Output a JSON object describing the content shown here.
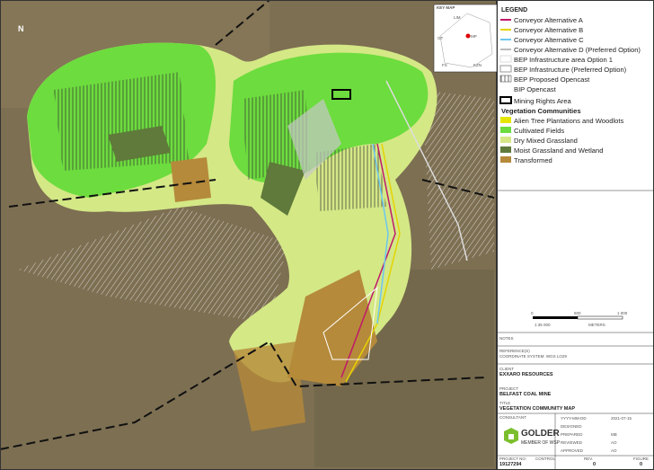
{
  "key_map": {
    "title": "KEY MAP",
    "labels": [
      "LIM",
      "GT",
      "MP",
      "FS",
      "KZN"
    ]
  },
  "legend": {
    "title": "LEGEND",
    "items": [
      "Conveyor Alternative A",
      "Conveyor Alternative B",
      "Conveyor Alternative C",
      "Conveyor Alternative D (Preferred Option)",
      "BEP Infrastructure area Option 1",
      "BEP Infrastructure (Preferred Option)",
      "BEP Proposed Opencast",
      "BIP Opencast",
      "Mining Rights Area"
    ],
    "vegetation_title": "Vegetation Communities",
    "vegetation_items": [
      "Alien Tree Plantations and Woodlots",
      "Cultivated Fields",
      "Dry Mixed Grassland",
      "Moist Grassland and Wetland",
      "Transformed"
    ]
  },
  "scale": {
    "ticks": [
      "0",
      "500",
      "1 000"
    ],
    "ratio": "1:35 000",
    "unit": "METERS"
  },
  "title_block": {
    "notes": "NOTES",
    "references_label": "REFERENCE(S)",
    "references": "COORDINATE SYSTEM: WGS LO29",
    "client_label": "CLIENT",
    "client": "EXXARO RESOURCES",
    "project_label": "PROJECT",
    "project": "BELFAST COAL MINE",
    "title_label": "TITLE",
    "title": "VEGETATION COMMUNITY MAP",
    "consultant_label": "CONSULTANT",
    "logo": "GOLDER",
    "logo_sub": "MEMBER OF WSP",
    "fields": [
      [
        "YYYY-MM-DD",
        "2021-07-15"
      ],
      [
        "DESIGNED"
      ],
      [
        "PREPARED",
        "MB"
      ],
      [
        "REVIEWED",
        "AO"
      ],
      [
        "APPROVED",
        "AO"
      ]
    ],
    "project_no_label": "PROJECT NO.",
    "project_no": "19127294",
    "control_label": "CONTROL",
    "rev_label": "REV.",
    "rev": "0",
    "figure_label": "FIGURE",
    "figure": "0"
  }
}
